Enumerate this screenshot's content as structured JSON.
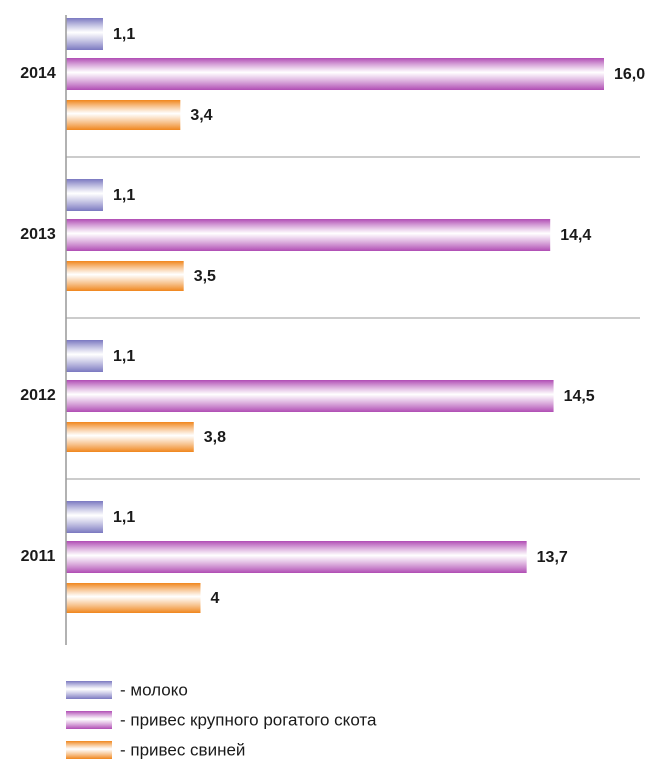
{
  "chart_data": {
    "type": "bar",
    "orientation": "horizontal",
    "categories": [
      "2014",
      "2013",
      "2012",
      "2011"
    ],
    "series": [
      {
        "name": "- молоко",
        "color": "#7a78c0",
        "values": [
          1.1,
          1.1,
          1.1,
          1.1
        ],
        "value_labels": [
          "1,1",
          "1,1",
          "1,1",
          "1,1"
        ]
      },
      {
        "name": "- привес крупного рогатого скота",
        "color": "#b04cb4",
        "values": [
          16.0,
          14.4,
          14.5,
          13.7
        ],
        "value_labels": [
          "16,0",
          "14,4",
          "14,5",
          "13,7"
        ]
      },
      {
        "name": "- привес свиней",
        "color": "#f0861c",
        "values": [
          3.4,
          3.5,
          3.8,
          4
        ],
        "value_labels": [
          "3,4",
          "3,5",
          "3,8",
          "4"
        ]
      }
    ]
  }
}
